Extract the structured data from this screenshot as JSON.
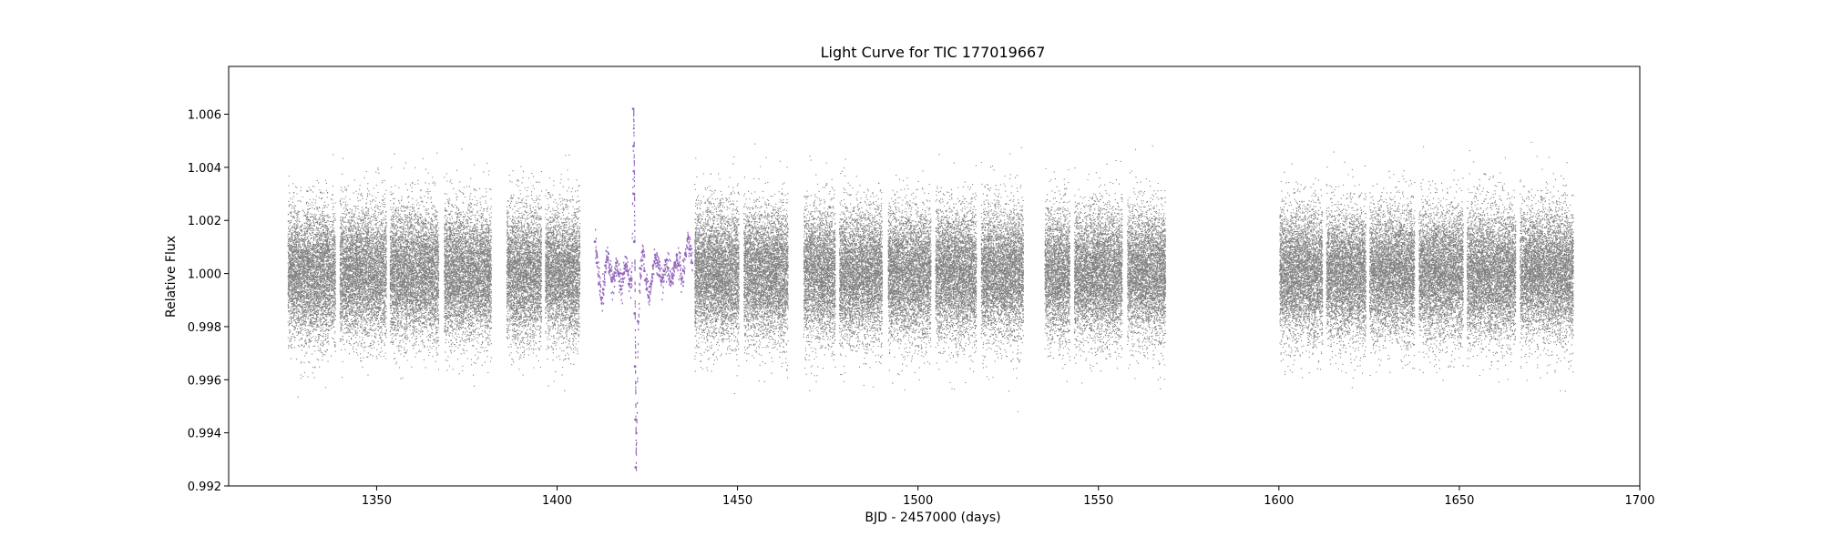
{
  "chart_data": {
    "type": "scatter",
    "title": "Light Curve for TIC 177019667",
    "xlabel": "BJD - 2457000 (days)",
    "ylabel": "Relative Flux",
    "xlim": [
      1309,
      1700
    ],
    "ylim": [
      0.992,
      1.0078
    ],
    "x_ticks": [
      1350,
      1400,
      1450,
      1500,
      1550,
      1600,
      1650,
      1700
    ],
    "y_ticks": [
      0.992,
      0.994,
      0.996,
      0.998,
      1.0,
      1.002,
      1.004,
      1.006
    ],
    "x_tick_labels": [
      "1350",
      "1400",
      "1450",
      "1500",
      "1550",
      "1600",
      "1650",
      "1700"
    ],
    "y_tick_labels": [
      "0.992",
      "0.994",
      "0.996",
      "0.998",
      "1.000",
      "1.002",
      "1.004",
      "1.006"
    ],
    "grid": false,
    "legend": "none",
    "series": [
      {
        "color": "#808080",
        "baseline": 1.0,
        "scatter_sigma": 0.0012,
        "segments": [
          [
            1325.3,
            1338.5
          ],
          [
            1339.7,
            1352.6
          ],
          [
            1353.6,
            1367.1
          ],
          [
            1368.6,
            1381.7
          ],
          [
            1385.9,
            1395.6
          ],
          [
            1396.6,
            1406.2
          ],
          [
            1438.0,
            1450.3
          ],
          [
            1451.6,
            1463.9
          ],
          [
            1468.2,
            1477.0
          ],
          [
            1478.1,
            1490.0
          ],
          [
            1491.6,
            1503.5
          ],
          [
            1504.7,
            1516.1
          ],
          [
            1517.4,
            1529.1
          ],
          [
            1535.0,
            1542.0
          ],
          [
            1543.2,
            1556.5
          ],
          [
            1557.9,
            1568.5
          ],
          [
            1600.1,
            1612.0
          ],
          [
            1613.0,
            1624.0
          ],
          [
            1625.0,
            1637.5
          ],
          [
            1638.7,
            1651.0
          ],
          [
            1652.0,
            1665.5
          ],
          [
            1666.7,
            1681.5
          ]
        ]
      },
      {
        "color": "#9467bd",
        "baseline": 1.0,
        "points": [
          [
            1410.5,
            1.0012
          ],
          [
            1411.0,
            1.0004
          ],
          [
            1411.6,
            0.9996
          ],
          [
            1412.2,
            0.9991
          ],
          [
            1412.8,
            0.9994
          ],
          [
            1413.4,
            1.0003
          ],
          [
            1414.0,
            1.0006
          ],
          [
            1414.6,
            1.0001
          ],
          [
            1415.2,
            0.9997
          ],
          [
            1415.8,
            0.9999
          ],
          [
            1416.4,
            1.0004
          ],
          [
            1417.0,
            1.0
          ],
          [
            1417.6,
            0.9994
          ],
          [
            1418.2,
            0.9998
          ],
          [
            1418.8,
            1.0003
          ],
          [
            1419.4,
            1.0001
          ],
          [
            1420.0,
            0.9996
          ],
          [
            1420.6,
            0.9998
          ],
          [
            1421.1,
            1.0062
          ],
          [
            1421.2,
            1.0048
          ],
          [
            1421.3,
            1.003
          ],
          [
            1421.4,
            1.0012
          ],
          [
            1421.5,
            0.9985
          ],
          [
            1421.6,
            0.9965
          ],
          [
            1421.7,
            0.9945
          ],
          [
            1421.8,
            0.9927
          ],
          [
            1422.4,
            0.9982
          ],
          [
            1423.0,
            1.0002
          ],
          [
            1423.6,
            1.0008
          ],
          [
            1424.2,
            1.0001
          ],
          [
            1424.8,
            0.9994
          ],
          [
            1425.4,
            0.9991
          ],
          [
            1426.0,
            0.9996
          ],
          [
            1426.6,
            1.0003
          ],
          [
            1427.2,
            1.0007
          ],
          [
            1427.8,
            1.0004
          ],
          [
            1428.4,
            0.9999
          ],
          [
            1429.0,
            0.9997
          ],
          [
            1429.6,
            1.0001
          ],
          [
            1430.2,
            1.0005
          ],
          [
            1430.8,
            1.0002
          ],
          [
            1431.4,
            0.9997
          ],
          [
            1432.0,
            0.9999
          ],
          [
            1432.6,
            1.0004
          ],
          [
            1433.2,
            1.0007
          ],
          [
            1433.8,
            1.0003
          ],
          [
            1434.4,
            0.9998
          ],
          [
            1435.0,
            1.0001
          ],
          [
            1435.6,
            1.0007
          ],
          [
            1436.2,
            1.0013
          ],
          [
            1436.8,
            1.0009
          ],
          [
            1437.4,
            1.0004
          ]
        ]
      }
    ]
  }
}
